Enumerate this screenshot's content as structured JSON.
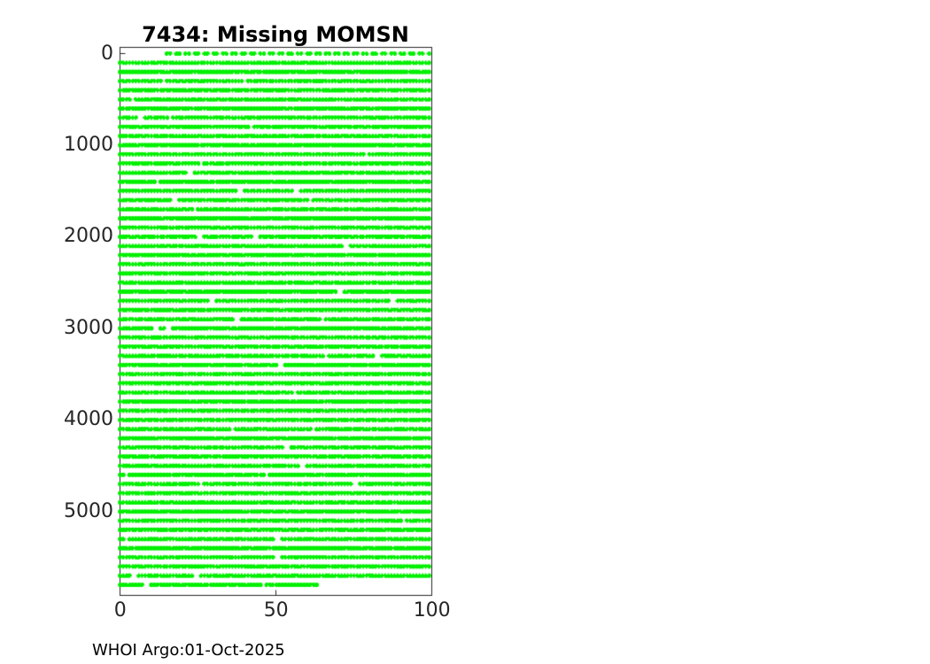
{
  "figure": {
    "background": "#ffffff",
    "footer_text": "WHOI Argo:01-Oct-2025"
  },
  "chart_data": {
    "type": "scatter",
    "title": "7434: Missing MOMSN",
    "xlabel": "",
    "ylabel": "",
    "marker": "dot",
    "marker_color": "#00F000",
    "axis_color": "#262626",
    "tick_label_color": "#262626",
    "xlim": [
      0,
      100
    ],
    "x_ticks": [
      0,
      50,
      100
    ],
    "y_ticks": [
      0,
      1000,
      2000,
      3000,
      4000,
      5000
    ],
    "y_axis_reversed": true,
    "grid": false,
    "legend": null,
    "row_step": 100,
    "rows_format": [
      "y",
      "x_start",
      "x_end"
    ],
    "rows": [
      [
        0,
        15,
        100
      ],
      [
        100,
        0,
        100
      ],
      [
        200,
        0,
        100
      ],
      [
        300,
        0,
        100
      ],
      [
        400,
        0,
        100
      ],
      [
        500,
        0,
        100
      ],
      [
        600,
        0,
        100
      ],
      [
        700,
        0,
        100
      ],
      [
        800,
        0,
        100
      ],
      [
        900,
        0,
        100
      ],
      [
        1000,
        0,
        100
      ],
      [
        1100,
        0,
        100
      ],
      [
        1200,
        0,
        100
      ],
      [
        1300,
        0,
        100
      ],
      [
        1400,
        0,
        100
      ],
      [
        1500,
        0,
        100
      ],
      [
        1600,
        0,
        100
      ],
      [
        1700,
        0,
        100
      ],
      [
        1800,
        0,
        100
      ],
      [
        1900,
        0,
        100
      ],
      [
        2000,
        0,
        100
      ],
      [
        2100,
        0,
        100
      ],
      [
        2200,
        0,
        100
      ],
      [
        2300,
        0,
        100
      ],
      [
        2400,
        0,
        100
      ],
      [
        2500,
        0,
        100
      ],
      [
        2600,
        0,
        100
      ],
      [
        2700,
        0,
        100
      ],
      [
        2800,
        0,
        100
      ],
      [
        2900,
        0,
        100
      ],
      [
        3000,
        0,
        100
      ],
      [
        3100,
        0,
        100
      ],
      [
        3200,
        0,
        100
      ],
      [
        3300,
        0,
        100
      ],
      [
        3400,
        0,
        100
      ],
      [
        3500,
        0,
        100
      ],
      [
        3600,
        0,
        100
      ],
      [
        3700,
        0,
        100
      ],
      [
        3800,
        0,
        100
      ],
      [
        3900,
        0,
        100
      ],
      [
        4000,
        0,
        100
      ],
      [
        4100,
        0,
        100
      ],
      [
        4200,
        0,
        100
      ],
      [
        4300,
        0,
        100
      ],
      [
        4400,
        0,
        100
      ],
      [
        4500,
        0,
        100
      ],
      [
        4600,
        0,
        100
      ],
      [
        4700,
        0,
        100
      ],
      [
        4800,
        0,
        100
      ],
      [
        4900,
        0,
        100
      ],
      [
        5000,
        0,
        100
      ],
      [
        5100,
        0,
        100
      ],
      [
        5200,
        0,
        100
      ],
      [
        5300,
        0,
        100
      ],
      [
        5400,
        0,
        100
      ],
      [
        5500,
        0,
        100
      ],
      [
        5600,
        0,
        100
      ],
      [
        5700,
        0,
        100
      ],
      [
        5800,
        0,
        64
      ]
    ]
  }
}
